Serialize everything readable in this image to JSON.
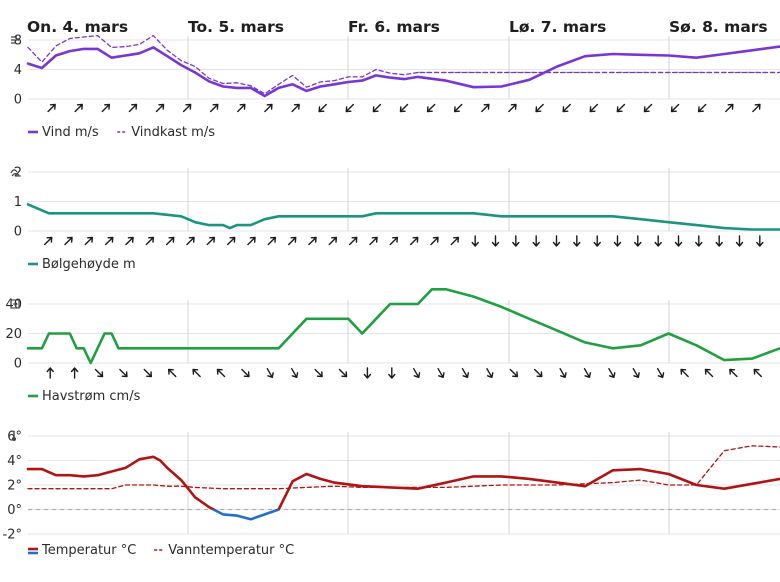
{
  "days": [
    "On. 4. mars",
    "To. 5. mars",
    "Fr. 6. mars",
    "Lø. 7. mars",
    "Sø. 8. mars"
  ],
  "chart_data": [
    {
      "type": "line",
      "panel": "wind",
      "icon": "wind-icon",
      "x_unit": "hours from start of On. 4. mars",
      "x_range": [
        0,
        108
      ],
      "ylim": [
        0,
        8
      ],
      "yticks": [
        "0",
        "4",
        "8"
      ],
      "series": [
        {
          "name": "Vind m/s",
          "style": "solid",
          "color": "#7a35d6",
          "x": [
            0,
            2,
            4,
            6,
            8,
            10,
            12,
            14,
            16,
            18,
            20,
            22,
            24,
            26,
            28,
            30,
            32,
            34,
            36,
            38,
            40,
            42,
            44,
            46,
            48,
            50,
            52,
            54,
            56,
            60,
            64,
            68,
            72,
            76,
            80,
            84,
            88,
            92,
            96,
            100,
            104,
            108
          ],
          "y": [
            4.8,
            4.2,
            5.9,
            6.5,
            6.8,
            6.8,
            5.6,
            5.9,
            6.2,
            7.0,
            5.8,
            4.6,
            3.6,
            2.4,
            1.7,
            1.5,
            1.5,
            0.4,
            1.5,
            2.0,
            1.1,
            1.7,
            2.0,
            2.3,
            2.5,
            3.2,
            2.9,
            2.7,
            3.0,
            2.5,
            1.6,
            1.7,
            2.6,
            4.4,
            5.8,
            6.1,
            6.0,
            5.9,
            5.6,
            6.1,
            6.6,
            7.1
          ]
        },
        {
          "name": "Vindkast m/s",
          "style": "dashed",
          "color": "#7a35d6",
          "x": [
            0,
            2,
            4,
            6,
            8,
            10,
            12,
            14,
            16,
            18,
            20,
            22,
            24,
            26,
            28,
            30,
            32,
            34,
            36,
            38,
            40,
            42,
            44,
            46,
            48,
            50,
            52,
            54,
            56,
            60,
            108
          ],
          "y": [
            7.0,
            5.0,
            7.2,
            8.2,
            8.4,
            8.6,
            7.0,
            7.1,
            7.4,
            8.6,
            6.6,
            5.2,
            4.4,
            2.8,
            2.1,
            2.2,
            1.8,
            0.7,
            2.0,
            3.2,
            1.6,
            2.3,
            2.5,
            3.0,
            3.0,
            4.0,
            3.5,
            3.3,
            3.6,
            3.6,
            3.6
          ]
        }
      ],
      "forecast_line": {
        "value": 3.6,
        "style": "dashed",
        "color": "#9e9e9e"
      },
      "direction_arrows_deg": [
        45,
        45,
        45,
        45,
        45,
        45,
        45,
        45,
        45,
        45,
        225,
        225,
        225,
        225,
        225,
        225,
        45,
        45,
        225,
        225,
        225,
        225,
        225,
        225,
        225,
        45,
        45
      ]
    },
    {
      "type": "line",
      "panel": "waves",
      "icon": "wave-icon",
      "x_unit": "hours from start of On. 4. mars",
      "x_range": [
        0,
        108
      ],
      "ylim": [
        0,
        2
      ],
      "yticks": [
        "0",
        "1",
        "2"
      ],
      "series": [
        {
          "name": "Bølgehøyde m",
          "style": "solid",
          "color": "#1a9580",
          "x": [
            0,
            3,
            6,
            10,
            14,
            18,
            22,
            23,
            24,
            26,
            28,
            29,
            30,
            32,
            34,
            36,
            40,
            44,
            48,
            50,
            52,
            56,
            60,
            64,
            68,
            72,
            76,
            80,
            84,
            88,
            92,
            96,
            100,
            104,
            108
          ],
          "y": [
            0.9,
            0.6,
            0.6,
            0.6,
            0.6,
            0.6,
            0.5,
            0.4,
            0.3,
            0.2,
            0.2,
            0.1,
            0.2,
            0.2,
            0.4,
            0.5,
            0.5,
            0.5,
            0.5,
            0.6,
            0.6,
            0.6,
            0.6,
            0.6,
            0.5,
            0.5,
            0.5,
            0.5,
            0.5,
            0.4,
            0.3,
            0.2,
            0.1,
            0.05,
            0.05
          ]
        }
      ],
      "direction_arrows_deg": [
        45,
        45,
        45,
        45,
        45,
        45,
        45,
        45,
        45,
        45,
        45,
        45,
        45,
        45,
        45,
        45,
        45,
        45,
        45,
        45,
        45,
        270,
        270,
        270,
        270,
        270,
        270,
        270,
        270,
        270,
        270,
        270,
        270,
        270,
        270,
        270
      ]
    },
    {
      "type": "line",
      "panel": "current",
      "icon": "current-icon",
      "x_unit": "hours from start of On. 4. mars",
      "x_range": [
        0,
        108
      ],
      "ylim": [
        0,
        40
      ],
      "yticks": [
        "0",
        "20",
        "40"
      ],
      "series": [
        {
          "name": "Havstrøm cm/s",
          "style": "solid",
          "color": "#20a040",
          "x": [
            0,
            2,
            3,
            4,
            6,
            7,
            8,
            9,
            10,
            11,
            12,
            13,
            14,
            16,
            18,
            20,
            24,
            28,
            32,
            36,
            38,
            40,
            41,
            42,
            44,
            46,
            48,
            50,
            51,
            52,
            54,
            56,
            58,
            60,
            64,
            68,
            72,
            76,
            80,
            84,
            88,
            92,
            96,
            100,
            104,
            108
          ],
          "y": [
            10,
            10,
            20,
            20,
            20,
            10,
            10,
            0,
            10,
            20,
            20,
            10,
            10,
            10,
            10,
            10,
            10,
            10,
            10,
            10,
            20,
            30,
            30,
            30,
            30,
            30,
            20,
            30,
            35,
            40,
            40,
            40,
            50,
            50,
            45,
            38,
            30,
            22,
            14,
            10,
            12,
            20,
            12,
            2,
            3,
            10
          ]
        }
      ],
      "direction_arrows_deg": [
        90,
        90,
        315,
        315,
        315,
        135,
        135,
        135,
        315,
        300,
        300,
        315,
        315,
        270,
        270,
        300,
        300,
        300,
        300,
        315,
        315,
        300,
        300,
        300,
        300,
        300,
        135,
        135,
        135,
        135
      ]
    },
    {
      "type": "line",
      "panel": "temperature",
      "icon": "thermometer-icon",
      "x_unit": "hours from start of On. 4. mars",
      "x_range": [
        0,
        108
      ],
      "ylim": [
        -2,
        6
      ],
      "yticks": [
        "-2°",
        "0°",
        "2°",
        "4°",
        "6°"
      ],
      "series": [
        {
          "name": "Temperatur °C",
          "style": "solid",
          "color": "#b01414",
          "below_zero_color": "#1f6fd6",
          "x": [
            0,
            2,
            4,
            6,
            8,
            10,
            12,
            14,
            16,
            18,
            19,
            20,
            22,
            24,
            26,
            28,
            30,
            32,
            34,
            36,
            38,
            40,
            42,
            44,
            48,
            52,
            56,
            60,
            64,
            68,
            72,
            76,
            80,
            84,
            88,
            92,
            96,
            100,
            104,
            108
          ],
          "y": [
            3.3,
            3.3,
            2.8,
            2.8,
            2.7,
            2.8,
            3.1,
            3.4,
            4.1,
            4.3,
            4.0,
            3.4,
            2.4,
            1.0,
            0.2,
            -0.4,
            -0.5,
            -0.8,
            -0.4,
            0.0,
            2.3,
            2.9,
            2.5,
            2.2,
            1.9,
            1.8,
            1.7,
            2.2,
            2.7,
            2.7,
            2.5,
            2.2,
            1.9,
            3.2,
            3.3,
            2.9,
            2.0,
            1.7,
            2.1,
            2.5
          ]
        },
        {
          "name": "Vanntemperatur °C",
          "style": "dashed",
          "color": "#b01414",
          "x": [
            0,
            6,
            12,
            14,
            18,
            20,
            22,
            24,
            28,
            32,
            36,
            40,
            44,
            48,
            52,
            56,
            60,
            64,
            68,
            72,
            76,
            80,
            84,
            88,
            92,
            96,
            100,
            104,
            108
          ],
          "y": [
            1.7,
            1.7,
            1.7,
            2.0,
            2.0,
            1.9,
            1.9,
            1.8,
            1.7,
            1.7,
            1.7,
            1.8,
            1.9,
            1.8,
            1.8,
            1.8,
            1.8,
            1.9,
            2.0,
            2.0,
            2.0,
            2.1,
            2.2,
            2.4,
            2.0,
            2.0,
            4.8,
            5.2,
            5.1
          ]
        }
      ],
      "zero_line": {
        "value": 0,
        "style": "dashed",
        "color": "#b0b0b0"
      }
    }
  ]
}
